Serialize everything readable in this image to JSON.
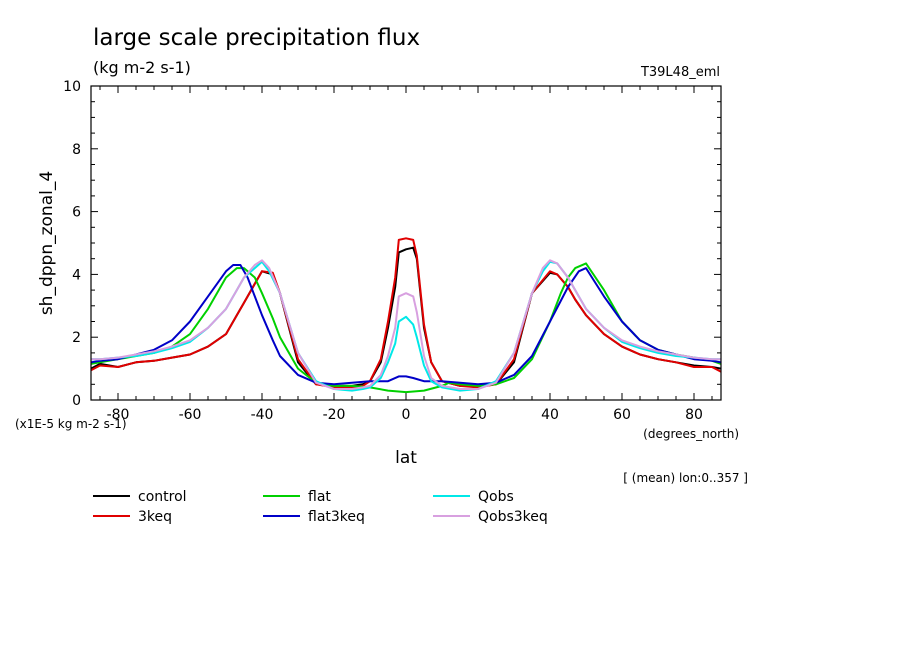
{
  "chart_data": {
    "type": "line",
    "title": "large scale precipitation flux",
    "subtitle": "(kg m-2 s-1)",
    "run_label": "T39L48_eml",
    "xlabel": "lat",
    "x_units": "(degrees_north)",
    "ylabel": "sh_dppn_zonal_4",
    "y_scale_note": "(x1E-5 kg m-2 s-1)",
    "footnote": "[ (mean) lon:0..357 ]",
    "xlim": [
      -87.5,
      87.5
    ],
    "ylim": [
      0,
      10
    ],
    "x_ticks": [
      -80,
      -60,
      -40,
      -20,
      0,
      20,
      40,
      60,
      80
    ],
    "x_tick_labels": [
      "-80",
      "-60",
      "-40",
      "-20",
      "0",
      "20",
      "40",
      "60",
      "80"
    ],
    "y_ticks": [
      0,
      2,
      4,
      6,
      8,
      10
    ],
    "y_tick_labels": [
      "0",
      "2",
      "4",
      "6",
      "8",
      "10"
    ],
    "grid": false,
    "legend_position": "bottom",
    "series": [
      {
        "name": "control",
        "color": "#000000",
        "x": [
          -87.5,
          -85,
          -80,
          -75,
          -70,
          -65,
          -60,
          -55,
          -50,
          -47,
          -45,
          -42,
          -40,
          -37,
          -35,
          -30,
          -25,
          -20,
          -15,
          -12,
          -10,
          -7,
          -5,
          -3,
          -2,
          0,
          2,
          3,
          5,
          7,
          10,
          15,
          20,
          25,
          30,
          35,
          40,
          42,
          45,
          47,
          50,
          55,
          60,
          65,
          70,
          75,
          80,
          85,
          87.5
        ],
        "y": [
          1.0,
          1.15,
          1.05,
          1.2,
          1.25,
          1.35,
          1.45,
          1.7,
          2.1,
          2.7,
          3.1,
          3.7,
          4.1,
          4.0,
          3.4,
          1.2,
          0.5,
          0.45,
          0.45,
          0.5,
          0.6,
          1.2,
          2.3,
          3.6,
          4.7,
          4.8,
          4.85,
          4.5,
          2.3,
          1.2,
          0.6,
          0.45,
          0.45,
          0.5,
          1.2,
          3.4,
          4.05,
          4.0,
          3.6,
          3.2,
          2.7,
          2.1,
          1.7,
          1.45,
          1.3,
          1.2,
          1.1,
          1.05,
          1.0
        ]
      },
      {
        "name": "3keq",
        "color": "#e00000",
        "x": [
          -87.5,
          -85,
          -80,
          -75,
          -70,
          -65,
          -60,
          -55,
          -50,
          -47,
          -45,
          -42,
          -40,
          -37,
          -35,
          -30,
          -25,
          -20,
          -15,
          -12,
          -10,
          -7,
          -5,
          -3,
          -2,
          0,
          2,
          3,
          5,
          7,
          10,
          15,
          20,
          25,
          30,
          35,
          40,
          42,
          45,
          47,
          50,
          55,
          60,
          65,
          70,
          75,
          80,
          85,
          87.5
        ],
        "y": [
          0.95,
          1.1,
          1.05,
          1.2,
          1.25,
          1.35,
          1.45,
          1.7,
          2.1,
          2.7,
          3.1,
          3.7,
          4.1,
          4.05,
          3.4,
          1.3,
          0.5,
          0.4,
          0.4,
          0.45,
          0.6,
          1.3,
          2.5,
          3.9,
          5.1,
          5.15,
          5.1,
          4.6,
          2.4,
          1.2,
          0.6,
          0.45,
          0.4,
          0.5,
          1.3,
          3.4,
          4.1,
          4.0,
          3.6,
          3.2,
          2.7,
          2.1,
          1.7,
          1.45,
          1.3,
          1.2,
          1.05,
          1.05,
          0.9
        ]
      },
      {
        "name": "flat",
        "color": "#00d000",
        "x": [
          -87.5,
          -85,
          -80,
          -75,
          -70,
          -65,
          -60,
          -55,
          -50,
          -47,
          -45,
          -42,
          -40,
          -37,
          -35,
          -30,
          -25,
          -20,
          -15,
          -10,
          -5,
          0,
          5,
          10,
          12,
          15,
          20,
          25,
          30,
          35,
          40,
          43,
          45,
          47,
          50,
          55,
          60,
          65,
          70,
          75,
          80,
          85,
          87.5
        ],
        "y": [
          1.15,
          1.2,
          1.3,
          1.4,
          1.5,
          1.7,
          2.1,
          2.9,
          3.9,
          4.2,
          4.2,
          3.9,
          3.4,
          2.6,
          2.0,
          1.0,
          0.55,
          0.45,
          0.45,
          0.4,
          0.3,
          0.25,
          0.3,
          0.45,
          0.55,
          0.5,
          0.45,
          0.5,
          0.7,
          1.3,
          2.5,
          3.4,
          3.9,
          4.2,
          4.35,
          3.5,
          2.5,
          1.9,
          1.6,
          1.45,
          1.35,
          1.25,
          1.15
        ]
      },
      {
        "name": "flat3keq",
        "color": "#0000c8",
        "x": [
          -87.5,
          -85,
          -80,
          -75,
          -70,
          -65,
          -60,
          -55,
          -50,
          -48,
          -46,
          -44,
          -42,
          -40,
          -37,
          -35,
          -30,
          -25,
          -20,
          -15,
          -10,
          -5,
          -2,
          0,
          2,
          5,
          10,
          15,
          20,
          25,
          30,
          35,
          40,
          45,
          48,
          50,
          55,
          60,
          65,
          70,
          75,
          80,
          85,
          87.5
        ],
        "y": [
          1.2,
          1.25,
          1.3,
          1.45,
          1.6,
          1.9,
          2.5,
          3.3,
          4.1,
          4.3,
          4.3,
          3.9,
          3.3,
          2.7,
          1.9,
          1.4,
          0.8,
          0.55,
          0.5,
          0.55,
          0.6,
          0.6,
          0.75,
          0.75,
          0.7,
          0.6,
          0.6,
          0.55,
          0.5,
          0.55,
          0.8,
          1.4,
          2.5,
          3.6,
          4.1,
          4.2,
          3.3,
          2.5,
          1.9,
          1.6,
          1.45,
          1.3,
          1.25,
          1.2
        ]
      },
      {
        "name": "Qobs",
        "color": "#00e8e8",
        "x": [
          -87.5,
          -85,
          -80,
          -75,
          -70,
          -65,
          -60,
          -55,
          -50,
          -47,
          -45,
          -42,
          -40,
          -38,
          -35,
          -30,
          -25,
          -20,
          -15,
          -12,
          -10,
          -7,
          -5,
          -3,
          -2,
          0,
          2,
          3,
          5,
          7,
          10,
          15,
          20,
          25,
          30,
          35,
          38,
          40,
          42,
          45,
          47,
          50,
          55,
          60,
          65,
          70,
          75,
          80,
          85,
          87.5
        ],
        "y": [
          1.3,
          1.3,
          1.35,
          1.4,
          1.5,
          1.65,
          1.85,
          2.3,
          2.9,
          3.5,
          3.9,
          4.2,
          4.4,
          4.1,
          3.4,
          1.5,
          0.6,
          0.35,
          0.3,
          0.35,
          0.4,
          0.7,
          1.2,
          1.8,
          2.5,
          2.65,
          2.4,
          2.0,
          1.1,
          0.6,
          0.4,
          0.3,
          0.35,
          0.6,
          1.5,
          3.4,
          4.1,
          4.4,
          4.35,
          3.9,
          3.5,
          2.9,
          2.3,
          1.85,
          1.65,
          1.5,
          1.4,
          1.35,
          1.3,
          1.3
        ]
      },
      {
        "name": "Qobs3keq",
        "color": "#d8a0e0",
        "x": [
          -87.5,
          -85,
          -80,
          -75,
          -70,
          -65,
          -60,
          -55,
          -50,
          -47,
          -45,
          -42,
          -40,
          -38,
          -35,
          -30,
          -25,
          -20,
          -15,
          -12,
          -10,
          -7,
          -5,
          -3,
          -2,
          0,
          2,
          3,
          5,
          7,
          10,
          15,
          20,
          25,
          30,
          35,
          38,
          40,
          42,
          45,
          47,
          50,
          55,
          60,
          65,
          70,
          75,
          80,
          85,
          87.5
        ],
        "y": [
          1.3,
          1.3,
          1.35,
          1.45,
          1.55,
          1.7,
          1.9,
          2.3,
          2.9,
          3.5,
          3.9,
          4.3,
          4.45,
          4.2,
          3.4,
          1.5,
          0.55,
          0.35,
          0.35,
          0.4,
          0.45,
          0.8,
          1.4,
          2.3,
          3.3,
          3.4,
          3.3,
          2.8,
          1.4,
          0.7,
          0.45,
          0.35,
          0.35,
          0.55,
          1.5,
          3.4,
          4.2,
          4.45,
          4.35,
          3.9,
          3.5,
          2.9,
          2.3,
          1.9,
          1.7,
          1.55,
          1.45,
          1.35,
          1.3,
          1.3
        ]
      }
    ]
  }
}
